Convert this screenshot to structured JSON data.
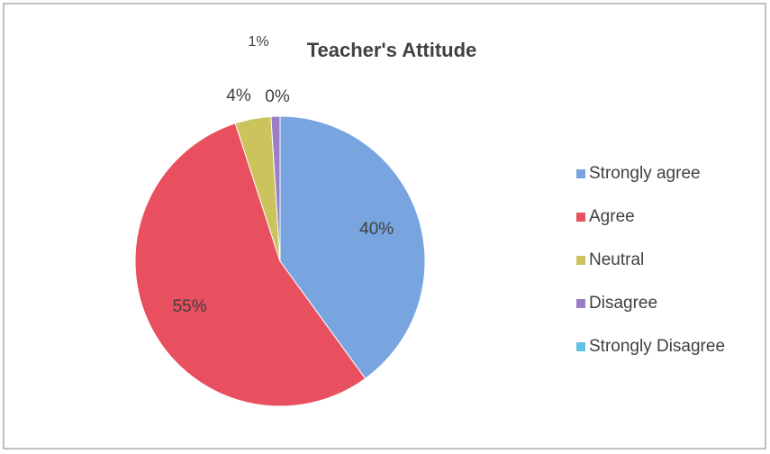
{
  "chart_data": {
    "type": "pie",
    "title": "Teacher's Attitude",
    "categories": [
      "Strongly agree",
      "Agree",
      "Neutral",
      "Disagree",
      "Strongly Disagree"
    ],
    "values": [
      40,
      55,
      4,
      1,
      0
    ],
    "value_labels": [
      "40%",
      "55%",
      "4%",
      "1%",
      "0%"
    ],
    "colors": [
      "#78a5e0",
      "#e8505f",
      "#cbc45c",
      "#9a7ec6",
      "#62c0e6"
    ],
    "legend": "right"
  }
}
